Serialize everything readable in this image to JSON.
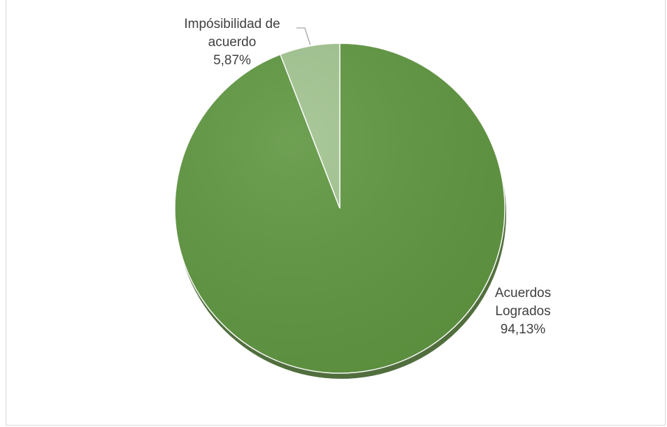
{
  "chart_data": {
    "type": "pie",
    "title": "",
    "slices": [
      {
        "name": "Acuerdos Logrados",
        "label_lines": [
          "Acuerdos",
          "Logrados"
        ],
        "value": 94.13,
        "value_label": "94,13%",
        "color": "#5f9640"
      },
      {
        "name": "Impósibilidad de acuerdo",
        "label_lines": [
          "Impósibilidad de",
          "acuerdo"
        ],
        "value": 5.87,
        "value_label": "5,87%",
        "color": "#a1c38f"
      }
    ],
    "start_angle_deg": 0,
    "direction": "clockwise",
    "legend": "none",
    "leader_line_color": "#a6a6a6"
  }
}
